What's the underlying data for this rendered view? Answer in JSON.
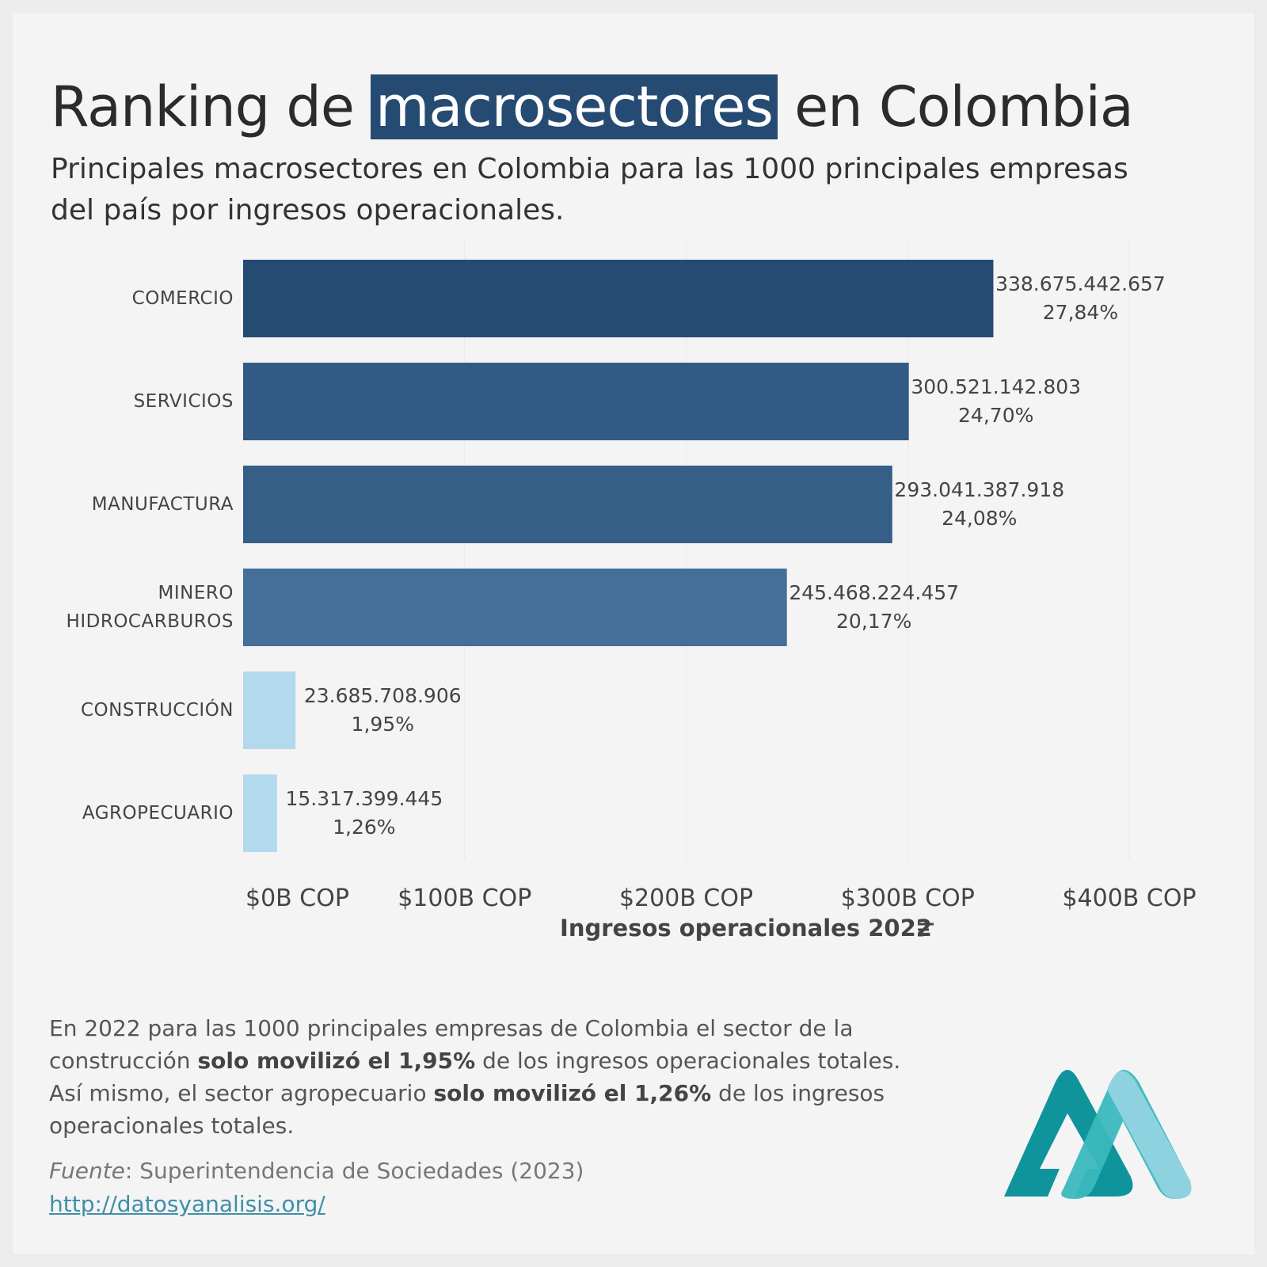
{
  "chart_data": {
    "type": "bar",
    "orientation": "horizontal",
    "title": {
      "before": "Ranking de",
      "highlight": "macrosectores",
      "after": "en Colombia",
      "highlight_color": "#264b73"
    },
    "subtitle": "Principales macrosectores en Colombia para las 1000 principales empresas del país por ingresos operacionales.",
    "categories": [
      "COMERCIO",
      "SERVICIOS",
      "MANUFACTURA",
      "MINERO HIDROCARBUROS",
      "CONSTRUCCIÓN",
      "AGROPECUARIO"
    ],
    "values": [
      338675442657,
      300521142803,
      293041387918,
      245468224457,
      23685708906,
      15317399445
    ],
    "value_labels": [
      "338.675.442.657",
      "300.521.142.803",
      "293.041.387.918",
      "245.468.224.457",
      "23.685.708.906",
      "15.317.399.445"
    ],
    "shares": [
      27.84,
      24.7,
      24.08,
      20.17,
      1.95,
      1.26
    ],
    "share_labels": [
      "27,84%",
      "24,70%",
      "24,08%",
      "20,17%",
      "1,95%",
      "1,26%"
    ],
    "colors": [
      "#264b73",
      "#315b85",
      "#365f88",
      "#436f99",
      "#b3d9ee",
      "#b3d9ee"
    ],
    "xlim": [
      0,
      400000000000
    ],
    "xticks": [
      {
        "value": 0,
        "label": "$0B COP"
      },
      {
        "value": 100000000000,
        "label": "$100B COP"
      },
      {
        "value": 200000000000,
        "label": "$200B COP"
      },
      {
        "value": 300000000000,
        "label": "$300B COP"
      },
      {
        "value": 400000000000,
        "label": "$400B COP"
      }
    ],
    "x_label": "Ingresos operacionales 2022",
    "grid": true,
    "note": [
      {
        "text": "En 2022 para las 1000 principales empresas de Colombia el sector de la construcción",
        "bold": false
      },
      {
        "text": "solo movilizó el 1,95%",
        "bold": true
      },
      {
        "text": "de los ingresos operacionales totales. Así mismo, el sector agropecuario",
        "bold": false
      },
      {
        "text": "solo movilizó el 1,26%",
        "bold": true
      },
      {
        "text": "de los ingresos operacionales totales.",
        "bold": false
      }
    ],
    "source": {
      "label": "Fuente",
      "text": ": Superintendencia de Sociedades (2023)",
      "url": "http://datosyanalisis.org/"
    }
  }
}
